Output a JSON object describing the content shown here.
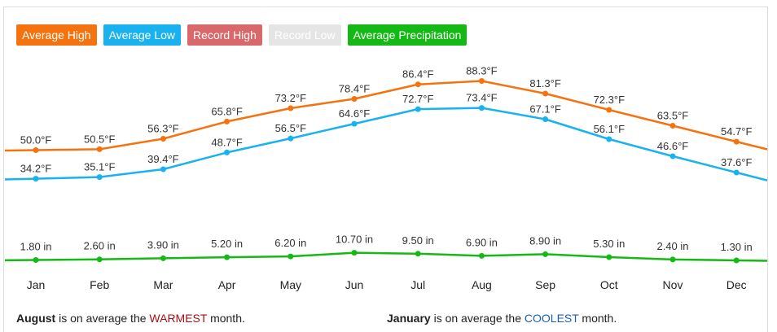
{
  "legend": [
    {
      "label": "Average High",
      "color": "#f4730f"
    },
    {
      "label": "Average Low",
      "color": "#19b2ef"
    },
    {
      "label": "Record High",
      "color": "#d9686b"
    },
    {
      "label": "Record Low",
      "color": "#e5e5e5"
    },
    {
      "label": "Average Precipitation",
      "color": "#15b915"
    }
  ],
  "chart_data": {
    "type": "line",
    "categories": [
      "Jan",
      "Feb",
      "Mar",
      "Apr",
      "May",
      "Jun",
      "Jul",
      "Aug",
      "Sep",
      "Oct",
      "Nov",
      "Dec"
    ],
    "series": [
      {
        "name": "Average High",
        "color": "#f4730f",
        "values": [
          50.0,
          50.5,
          56.3,
          65.8,
          73.2,
          78.4,
          86.4,
          88.3,
          81.3,
          72.3,
          63.5,
          54.7
        ],
        "labels": [
          "50.0°F",
          "50.5°F",
          "56.3°F",
          "65.8°F",
          "73.2°F",
          "78.4°F",
          "86.4°F",
          "88.3°F",
          "81.3°F",
          "72.3°F",
          "63.5°F",
          "54.7°F"
        ]
      },
      {
        "name": "Average Low",
        "color": "#19b2ef",
        "values": [
          34.2,
          35.1,
          39.4,
          48.7,
          56.5,
          64.6,
          72.7,
          73.4,
          67.1,
          56.1,
          46.6,
          37.6
        ],
        "labels": [
          "34.2°F",
          "35.1°F",
          "39.4°F",
          "48.7°F",
          "56.5°F",
          "64.6°F",
          "72.7°F",
          "73.4°F",
          "67.1°F",
          "56.1°F",
          "46.6°F",
          "37.6°F"
        ]
      },
      {
        "name": "Average Precipitation",
        "color": "#15b915",
        "values": [
          1.8,
          2.6,
          3.9,
          5.2,
          6.2,
          10.7,
          9.5,
          6.9,
          8.9,
          5.3,
          2.4,
          1.3
        ],
        "labels": [
          "1.80 in",
          "2.60 in",
          "3.90 in",
          "5.20 in",
          "6.20 in",
          "10.70 in",
          "9.50 in",
          "6.90 in",
          "8.90 in",
          "5.30 in",
          "2.40 in",
          "1.30 in"
        ]
      }
    ],
    "legend_position": "top-left",
    "grid": false
  },
  "footer": {
    "warm_month": "August",
    "warm_prefix": " is on average the ",
    "warm_word": "WARMEST",
    "warm_suffix": " month.",
    "cool_month": "January",
    "cool_prefix": " is on average the ",
    "cool_word": "COOLEST",
    "cool_suffix": " month.",
    "warm_color": "#a50f15",
    "cool_color": "#1a5fb4"
  }
}
